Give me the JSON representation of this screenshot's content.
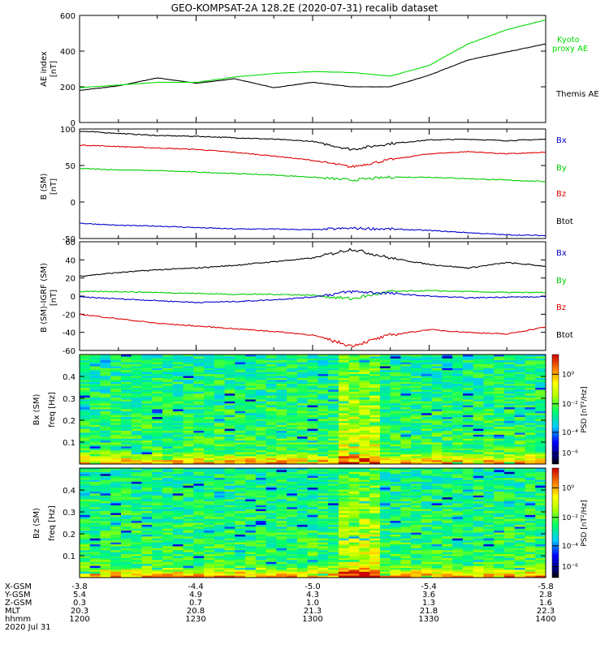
{
  "title": "GEO-KOMPSAT-2A 128.2E (2020-07-31) recalib dataset",
  "chart_data": [
    {
      "type": "line",
      "ylabel": "AE index [nT]",
      "ylim": [
        0,
        600
      ],
      "yticks": [
        0,
        200,
        400,
        600
      ],
      "x": [
        "1200",
        "1210",
        "1220",
        "1230",
        "1240",
        "1250",
        "1300",
        "1310",
        "1320",
        "1330",
        "1340",
        "1350",
        "1400"
      ],
      "series": [
        {
          "name": "Themis AE",
          "color": "#000000",
          "values": [
            180,
            205,
            250,
            220,
            245,
            195,
            225,
            200,
            200,
            265,
            350,
            395,
            440
          ]
        },
        {
          "name": "Kyoto proxy AE",
          "color": "#00dd00",
          "values": [
            195,
            210,
            225,
            225,
            255,
            275,
            285,
            280,
            260,
            320,
            440,
            520,
            575
          ]
        }
      ]
    },
    {
      "type": "line",
      "ylabel": "B (SM) [nT]",
      "ylim": [
        -50,
        100
      ],
      "yticks": [
        -50,
        0,
        50,
        100
      ],
      "x": [
        "1200",
        "1210",
        "1220",
        "1230",
        "1240",
        "1250",
        "1300",
        "1310",
        "1320",
        "1330",
        "1340",
        "1350",
        "1400"
      ],
      "series": [
        {
          "name": "Btot",
          "color": "#000000",
          "values": [
            97,
            94,
            91,
            90,
            88,
            86,
            83,
            72,
            80,
            85,
            86,
            84,
            86
          ]
        },
        {
          "name": "Bz",
          "color": "#dd0000",
          "values": [
            78,
            76,
            74,
            72,
            68,
            63,
            57,
            48,
            58,
            66,
            69,
            66,
            68
          ]
        },
        {
          "name": "By",
          "color": "#00cc00",
          "values": [
            46,
            44,
            43,
            41,
            39,
            37,
            34,
            30,
            34,
            34,
            32,
            30,
            28
          ]
        },
        {
          "name": "Bx",
          "color": "#0000cc",
          "values": [
            -29,
            -32,
            -33,
            -35,
            -37,
            -37,
            -38,
            -36,
            -37,
            -39,
            -42,
            -45,
            -46
          ]
        }
      ]
    },
    {
      "type": "line",
      "ylabel": "B (SM)-IGRF (SM) [nT]",
      "ylim": [
        -60,
        60
      ],
      "yticks": [
        -60,
        -40,
        -20,
        0,
        20,
        40,
        60
      ],
      "x": [
        "1200",
        "1210",
        "1220",
        "1230",
        "1240",
        "1250",
        "1300",
        "1310",
        "1320",
        "1330",
        "1340",
        "1350",
        "1400"
      ],
      "series": [
        {
          "name": "Btot",
          "color": "#000000",
          "values": [
            22,
            26,
            29,
            31,
            34,
            38,
            42,
            52,
            42,
            35,
            31,
            37,
            33
          ]
        },
        {
          "name": "By",
          "color": "#00cc00",
          "values": [
            5,
            5,
            4,
            3,
            2,
            2,
            1,
            -3,
            5,
            6,
            5,
            4,
            4
          ]
        },
        {
          "name": "Bx",
          "color": "#0000cc",
          "values": [
            -1,
            -3,
            -5,
            -7,
            -6,
            -4,
            -1,
            5,
            3,
            0,
            -2,
            -1,
            -1
          ]
        },
        {
          "name": "Bz",
          "color": "#dd0000",
          "values": [
            -20,
            -25,
            -30,
            -33,
            -36,
            -39,
            -43,
            -55,
            -43,
            -37,
            -40,
            -42,
            -34
          ]
        }
      ]
    },
    {
      "type": "heatmap",
      "ylabel": "Bx (SM) freq [Hz]",
      "ylim": [
        0,
        0.5
      ],
      "yticks": [
        0.1,
        0.2,
        0.3,
        0.4
      ],
      "colorbar": {
        "label": "PSD [nT^2/Hz]",
        "ticks": [
          "10^0",
          "10^-2",
          "10^-4",
          "10^-6"
        ]
      }
    },
    {
      "type": "heatmap",
      "ylabel": "Bz (SM) freq [Hz]",
      "ylim": [
        0,
        0.5
      ],
      "yticks": [
        0.1,
        0.2,
        0.3,
        0.4
      ],
      "colorbar": {
        "label": "PSD [nT^2/Hz]",
        "ticks": [
          "10^0",
          "10^-2",
          "10^-4",
          "10^-6"
        ]
      }
    }
  ],
  "panels": [
    {
      "ylabel_main": "AE index",
      "ylabel_unit": "[nT]",
      "yticks": [
        "0",
        "200",
        "400",
        "600"
      ],
      "legend": [
        {
          "line1": "Kyoto",
          "line2": "proxy AE"
        },
        {
          "line1": "Themis AE"
        }
      ]
    },
    {
      "ylabel_main": "B (SM)",
      "ylabel_unit": "[nT]",
      "yticks": [
        "-50",
        "0",
        "50",
        "100"
      ],
      "legend": [
        "Bx",
        "By",
        "Bz",
        "Btot"
      ]
    },
    {
      "ylabel_main": "B (SM)-IGRF (SM)",
      "ylabel_unit": "[nT]",
      "yticks": [
        "-60",
        "-40",
        "-20",
        "0",
        "20",
        "40",
        "60"
      ],
      "legend": [
        "Bx",
        "By",
        "Bz",
        "Btot"
      ]
    },
    {
      "ylabel_main": "Bx (SM)",
      "ylabel_unit": "freq [Hz]",
      "yticks": [
        "0.1",
        "0.2",
        "0.3",
        "0.4"
      ],
      "colorbar": {
        "label": "PSD [nT²/Hz]",
        "ticks": [
          "10⁰",
          "10⁻²",
          "10⁻⁴",
          "10⁻⁶"
        ]
      }
    },
    {
      "ylabel_main": "Bz (SM)",
      "ylabel_unit": "freq [Hz]",
      "yticks": [
        "0.1",
        "0.2",
        "0.3",
        "0.4"
      ],
      "colorbar": {
        "label": "PSD [nT²/Hz]",
        "ticks": [
          "10⁰",
          "10⁻²",
          "10⁻⁴",
          "10⁻⁶"
        ]
      }
    }
  ],
  "ephemeris": {
    "rows": [
      {
        "label": "X-GSM",
        "values": [
          "-3.8",
          "-4.4",
          "-5.0",
          "-5.4",
          "-5.8"
        ]
      },
      {
        "label": "Y-GSM",
        "values": [
          "5.4",
          "4.9",
          "4.3",
          "3.6",
          "2.8"
        ]
      },
      {
        "label": "Z-GSM",
        "values": [
          "0.3",
          "0.7",
          "1.0",
          "1.3",
          "1.6"
        ]
      },
      {
        "label": "MLT",
        "values": [
          "20.3",
          "20.8",
          "21.3",
          "21.8",
          "22.3"
        ]
      },
      {
        "label": "hhmm",
        "values": [
          "1200",
          "1230",
          "1300",
          "1330",
          "1400"
        ]
      }
    ],
    "date": "2020 Jul 31"
  }
}
